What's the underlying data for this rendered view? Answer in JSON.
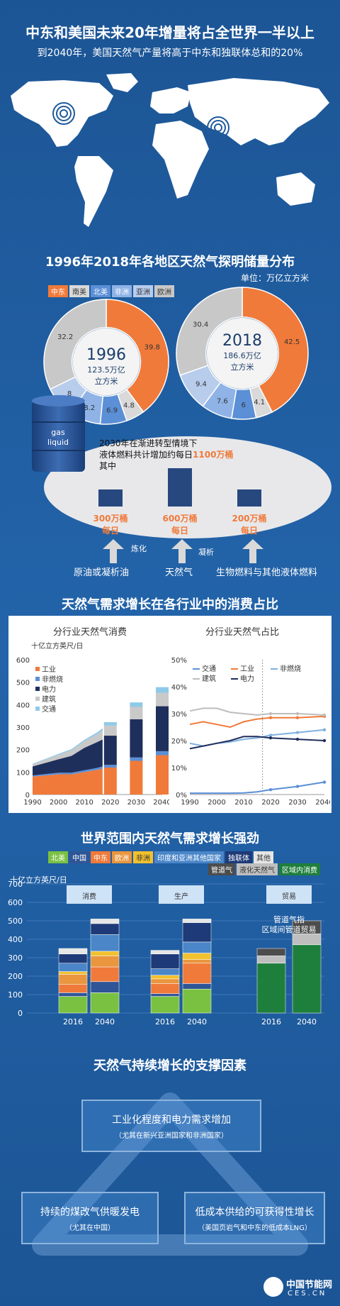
{
  "header": {
    "title": "中东和美国未来20年增量将占全世界一半以上",
    "subtitle": "到2040年，美国天然气产量将高于中东和独联体总和的20%"
  },
  "reserves": {
    "title": "1996年2018年各地区天然气探明储量分布",
    "unit": "单位：万亿立方米",
    "legend": [
      {
        "name": "中东",
        "color": "#f07a3a"
      },
      {
        "name": "南美",
        "color": "#d9d9d9"
      },
      {
        "name": "北美",
        "color": "#5b8fd6"
      },
      {
        "name": "非洲",
        "color": "#8fb3e6"
      },
      {
        "name": "亚洲",
        "color": "#b8ccec"
      },
      {
        "name": "欧洲",
        "color": "#c8c8c8"
      }
    ],
    "d1996": {
      "year": "1996",
      "total": "123.5万亿",
      "total2": "立方米"
    },
    "d2018": {
      "year": "2018",
      "total": "186.6万亿",
      "total2": "立方米"
    }
  },
  "liquid": {
    "barrel_label1": "gas",
    "barrel_label2": "liquid",
    "desc1": "2030年在渐进转型情境下",
    "desc2": "液体燃料共计增加约每日",
    "desc_highlight": "1100万桶",
    "desc3": "其中",
    "items": [
      {
        "value": "300万桶",
        "unit": "每日",
        "label": "原油或凝析油"
      },
      {
        "value": "600万桶",
        "unit": "每日",
        "label": "天然气"
      },
      {
        "value": "200万桶",
        "unit": "每日",
        "label": "生物燃料与其他液体燃料"
      }
    ],
    "arrow1": "炼化",
    "arrow2": "凝析"
  },
  "sector": {
    "title": "天然气需求增长在各行业中的消费占比",
    "left_title": "分行业天然气消费",
    "left_unit": "十亿立方英尺/日",
    "right_title": "分行业天然气占比",
    "left_legend": [
      "工业",
      "非燃烧",
      "电力",
      "建筑",
      "交通"
    ],
    "right_legend": [
      "交通",
      "工业",
      "非燃烧",
      "建筑",
      "电力"
    ]
  },
  "world": {
    "title": "世界范围内天然气需求增长强劲",
    "unit": "十亿立方英尺/日",
    "legend_row1": [
      {
        "name": "北美",
        "color": "#7ac142"
      },
      {
        "name": "中国",
        "color": "#2f5597"
      },
      {
        "name": "中东",
        "color": "#f07a3a"
      },
      {
        "name": "欧洲",
        "color": "#e9963e"
      },
      {
        "name": "非洲",
        "color": "#f2c12e"
      },
      {
        "name": "印度和亚洲其他国家",
        "color": "#4a86c8"
      },
      {
        "name": "独联体",
        "color": "#1e3a78"
      },
      {
        "name": "其他",
        "color": "#e6e6e6"
      }
    ],
    "legend_row2": [
      {
        "name": "管道气",
        "color": "#4d4d4d"
      },
      {
        "name": "液化天然气",
        "color": "#bfbfbf"
      },
      {
        "name": "区域内消费",
        "color": "#1e7f3c"
      }
    ],
    "sections": [
      "消费",
      "生产",
      "贸易"
    ],
    "trade_note1": "管道气指",
    "trade_note2": "区域间管道贸易"
  },
  "drivers": {
    "title": "天然气持续增长的支撑因素",
    "top_main": "工业化程度和电力需求增加",
    "top_sub": "（尤其在新兴亚洲国家和非洲国家）",
    "left_main": "持续的煤改气供暖发电",
    "left_sub": "（尤其在中国）",
    "right_main": "低成本供给的可获得性增长",
    "right_sub": "（美国页岩气和中东的低成本LNG）"
  },
  "footer": {
    "logo": "中国节能网",
    "site": "CES.CN"
  },
  "chart_data": [
    {
      "type": "pie",
      "title": "1996",
      "categories": [
        "中东",
        "南美",
        "北美",
        "非洲",
        "亚洲",
        "欧洲"
      ],
      "values": [
        39.8,
        4.8,
        6.9,
        8.2,
        8.0,
        32.2
      ]
    },
    {
      "type": "pie",
      "title": "2018",
      "categories": [
        "中东",
        "南美",
        "北美",
        "非洲",
        "亚洲",
        "欧洲"
      ],
      "values": [
        42.5,
        4.1,
        6.0,
        7.6,
        9.4,
        30.4
      ]
    },
    {
      "type": "area",
      "title": "分行业天然气消费",
      "ylabel": "十亿立方英尺/日",
      "x": [
        1990,
        1995,
        2000,
        2005,
        2010,
        2015,
        2017,
        2020,
        2030,
        2040
      ],
      "xticks": [
        "1990",
        "2000",
        "2010",
        "2020",
        "2030",
        "2040"
      ],
      "yticks": [
        "0",
        "100",
        "200",
        "300",
        "400",
        "500",
        "600"
      ],
      "ylim": [
        0,
        600
      ],
      "series": [
        {
          "name": "工业",
          "values": [
            80,
            85,
            90,
            90,
            100,
            110,
            115,
            120,
            150,
            175
          ]
        },
        {
          "name": "非燃烧",
          "values": [
            5,
            6,
            7,
            7,
            8,
            9,
            10,
            12,
            15,
            18
          ]
        },
        {
          "name": "电力",
          "values": [
            40,
            50,
            60,
            75,
            100,
            115,
            120,
            130,
            170,
            200
          ]
        },
        {
          "name": "建筑",
          "values": [
            10,
            15,
            20,
            25,
            30,
            35,
            40,
            45,
            55,
            60
          ]
        },
        {
          "name": "交通",
          "values": [
            2,
            3,
            4,
            5,
            6,
            8,
            10,
            15,
            20,
            25
          ]
        }
      ]
    },
    {
      "type": "line",
      "title": "分行业天然气占比",
      "x": [
        1990,
        1995,
        2000,
        2005,
        2010,
        2015,
        2020,
        2030,
        2040
      ],
      "xticks": [
        "1990",
        "2000",
        "2010",
        "2020",
        "2030",
        "2040"
      ],
      "yticks": [
        "0%",
        "10%",
        "20%",
        "30%",
        "40%",
        "50%"
      ],
      "ylim": [
        0,
        50
      ],
      "series": [
        {
          "name": "交通",
          "values": [
            0.5,
            0.5,
            0.5,
            0.5,
            0.6,
            1.0,
            1.8,
            3.0,
            4.6
          ]
        },
        {
          "name": "工业",
          "values": [
            26,
            27,
            26,
            25,
            27,
            28,
            28.5,
            28.5,
            29
          ]
        },
        {
          "name": "非燃烧",
          "values": [
            19,
            18,
            19,
            19.5,
            20.5,
            21,
            22,
            23,
            24
          ]
        },
        {
          "name": "建筑",
          "values": [
            31,
            32,
            32,
            30.5,
            30,
            29.5,
            30,
            30,
            29.5
          ]
        },
        {
          "name": "电力",
          "values": [
            17,
            18,
            19,
            20,
            21.5,
            21.5,
            21,
            20.5,
            20
          ]
        }
      ]
    },
    {
      "type": "bar",
      "title": "世界范围内天然气需求增长强劲",
      "ylabel": "十亿立方英尺/日",
      "ylim": [
        0,
        700
      ],
      "yticks": [
        "0",
        "100",
        "200",
        "300",
        "400",
        "500",
        "600",
        "700"
      ],
      "categories": [
        "消费 2016",
        "消费 2040",
        "生产 2016",
        "生产 2040",
        "贸易 2016",
        "贸易 2040"
      ],
      "xticks": [
        "2016",
        "2040",
        "2016",
        "2040",
        "2016",
        "2040"
      ],
      "series": [
        {
          "name": "北美",
          "values": [
            90,
            110,
            90,
            130,
            0,
            0
          ]
        },
        {
          "name": "中国",
          "values": [
            20,
            60,
            15,
            30,
            0,
            0
          ]
        },
        {
          "name": "中东",
          "values": [
            45,
            80,
            55,
            110,
            0,
            0
          ]
        },
        {
          "name": "欧洲",
          "values": [
            55,
            60,
            25,
            20,
            0,
            0
          ]
        },
        {
          "name": "非洲",
          "values": [
            15,
            25,
            20,
            35,
            0,
            0
          ]
        },
        {
          "name": "印度和亚洲其他国家",
          "values": [
            45,
            90,
            35,
            60,
            0,
            0
          ]
        },
        {
          "name": "独联体",
          "values": [
            50,
            60,
            80,
            105,
            0,
            0
          ]
        },
        {
          "name": "其他",
          "values": [
            30,
            25,
            20,
            20,
            0,
            0
          ]
        },
        {
          "name": "区域内消费",
          "values": [
            0,
            0,
            0,
            0,
            270,
            370
          ]
        },
        {
          "name": "液化天然气",
          "values": [
            0,
            0,
            0,
            0,
            40,
            60
          ]
        },
        {
          "name": "管道气",
          "values": [
            0,
            0,
            0,
            0,
            40,
            70
          ]
        }
      ]
    }
  ]
}
